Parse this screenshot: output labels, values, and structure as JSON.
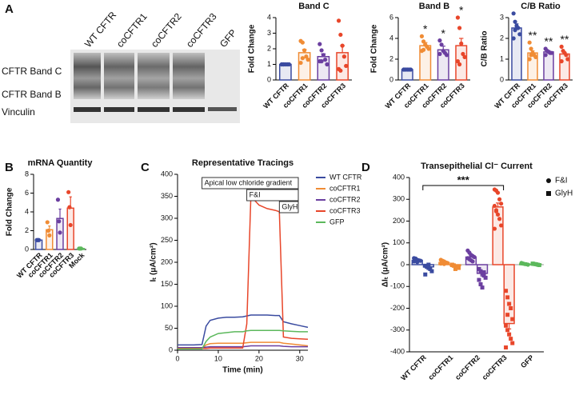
{
  "blot": {
    "panel": "A",
    "lanes": [
      "WT CFTR",
      "coCFTR1",
      "coCFTR2",
      "coCFTR3",
      "GFP"
    ],
    "bands": [
      "CFTR Band C",
      "CFTR Band B",
      "Vinculin"
    ]
  },
  "chart_data": [
    {
      "type": "bar",
      "title": "Band C",
      "ylabel": "Fold Change",
      "categories": [
        "WT CFTR",
        "coCFTR1",
        "coCFTR2",
        "coCFTR3"
      ],
      "colors": [
        "#3a4ba0",
        "#f08c35",
        "#6b3fa0",
        "#e8462a"
      ],
      "values": [
        1,
        1.75,
        1.5,
        1.75
      ],
      "errors": [
        0.02,
        0.2,
        0.18,
        0.45
      ],
      "points": [
        [
          1,
          1,
          1,
          1,
          1,
          1,
          1
        ],
        [
          2.5,
          2.4,
          1.9,
          1.5,
          1.3,
          1.1,
          1.4
        ],
        [
          2.3,
          1.9,
          1.6,
          1.3,
          1.0,
          1.2,
          1.2
        ],
        [
          3.8,
          2.9,
          2.2,
          1.5,
          0.9,
          0.7,
          0.6
        ]
      ],
      "ylim": [
        0,
        4
      ],
      "yticks": [
        0,
        1,
        2,
        3,
        4
      ]
    },
    {
      "type": "bar",
      "title": "Band B",
      "ylabel": "Fold Change",
      "categories": [
        "WT CFTR",
        "coCFTR1",
        "coCFTR2",
        "coCFTR3"
      ],
      "colors": [
        "#3a4ba0",
        "#f08c35",
        "#6b3fa0",
        "#e8462a"
      ],
      "values": [
        1,
        3.3,
        2.9,
        3.3
      ],
      "errors": [
        0.03,
        0.3,
        0.35,
        0.7
      ],
      "points": [
        [
          1,
          1,
          1,
          1,
          1,
          1
        ],
        [
          4.2,
          3.7,
          3.4,
          3.2,
          3.0,
          2.8,
          2.9
        ],
        [
          3.8,
          3.4,
          2.8,
          2.6,
          2.4,
          2.5
        ],
        [
          6.0,
          5.0,
          3.5,
          2.5,
          2.2,
          1.8,
          1.5
        ]
      ],
      "significance": [
        null,
        "*",
        "*",
        "*"
      ],
      "ylim": [
        0,
        6
      ],
      "yticks": [
        0,
        2,
        4,
        6
      ]
    },
    {
      "type": "bar",
      "title": "C/B Ratio",
      "ylabel": "C/B Ratio",
      "categories": [
        "WT CFTR",
        "coCFTR1",
        "coCFTR2",
        "coCFTR3"
      ],
      "colors": [
        "#3a4ba0",
        "#f08c35",
        "#6b3fa0",
        "#e8462a"
      ],
      "values": [
        2.5,
        1.3,
        1.35,
        1.25
      ],
      "errors": [
        0.2,
        0.1,
        0.06,
        0.08
      ],
      "points": [
        [
          3.2,
          2.8,
          2.6,
          2.5,
          2.2,
          2.0,
          2.4
        ],
        [
          1.8,
          1.5,
          1.3,
          1.2,
          1.1,
          1.0,
          1.2
        ],
        [
          1.5,
          1.4,
          1.35,
          1.3,
          1.3,
          1.2,
          1.4
        ],
        [
          1.6,
          1.4,
          1.3,
          1.2,
          1.0,
          0.9
        ]
      ],
      "significance": [
        null,
        "**",
        "**",
        "**"
      ],
      "ylim": [
        0,
        3
      ],
      "yticks": [
        0,
        1,
        2,
        3
      ]
    },
    {
      "type": "bar",
      "panel": "B",
      "title": "mRNA Quantity",
      "ylabel": "Fold Change",
      "categories": [
        "WT CFTR",
        "coCFTR1",
        "coCFTR2",
        "coCFTR3",
        "Mock"
      ],
      "colors": [
        "#3a4ba0",
        "#f08c35",
        "#6b3fa0",
        "#e8462a",
        "#5cb85c"
      ],
      "values": [
        1,
        2.1,
        3.3,
        4.4,
        0.1
      ],
      "errors": [
        0.05,
        0.4,
        1.0,
        1.2,
        0.02
      ],
      "points": [
        [
          1,
          1,
          1
        ],
        [
          2.9,
          2.0,
          1.5
        ],
        [
          5.3,
          3.0,
          1.8
        ],
        [
          6.1,
          4.5,
          2.6
        ],
        [
          0.1,
          0.1,
          0.1
        ]
      ],
      "ylim": [
        0,
        8
      ],
      "yticks": [
        0,
        2,
        4,
        6,
        8
      ]
    },
    {
      "type": "line",
      "panel": "C",
      "title": "Representative Tracings",
      "xlabel": "Time (min)",
      "ylabel": "Iₜ (μA/cm²)",
      "x": [
        0,
        2,
        4,
        6,
        7,
        8,
        10,
        12,
        14,
        16,
        17,
        18,
        19,
        20,
        22,
        24,
        25,
        26,
        28,
        30,
        32
      ],
      "series": [
        {
          "name": "WT CFTR",
          "color": "#3a4ba0",
          "values": [
            12,
            12,
            12,
            13,
            55,
            68,
            73,
            75,
            75,
            76,
            78,
            80,
            80,
            80,
            80,
            79,
            79,
            65,
            60,
            56,
            52
          ]
        },
        {
          "name": "coCFTR1",
          "color": "#f08c35",
          "values": [
            5,
            5,
            5,
            5,
            12,
            15,
            16,
            16,
            16,
            16,
            17,
            18,
            18,
            18,
            18,
            18,
            18,
            16,
            14,
            12,
            10
          ]
        },
        {
          "name": "coCFTR2",
          "color": "#6b3fa0",
          "values": [
            6,
            6,
            6,
            6,
            7,
            8,
            8,
            8,
            8,
            8,
            9,
            10,
            10,
            10,
            10,
            10,
            10,
            9,
            8,
            8,
            8
          ]
        },
        {
          "name": "coCFTR3",
          "color": "#e8462a",
          "values": [
            4,
            4,
            4,
            4,
            4,
            5,
            5,
            5,
            5,
            5,
            60,
            350,
            340,
            330,
            322,
            318,
            315,
            30,
            27,
            26,
            25
          ]
        },
        {
          "name": "GFP",
          "color": "#5cb85c",
          "values": [
            3,
            3,
            3,
            3,
            20,
            30,
            38,
            40,
            42,
            42,
            44,
            45,
            45,
            45,
            45,
            45,
            45,
            44,
            43,
            42,
            42
          ]
        }
      ],
      "annotations": [
        {
          "text": "Apical low chloride gradient",
          "start": 6
        },
        {
          "text": "F&I",
          "start": 17
        },
        {
          "text": "GlyH",
          "start": 25
        }
      ],
      "xlim": [
        0,
        32
      ],
      "xticks": [
        0,
        10,
        20,
        30
      ],
      "ylim": [
        0,
        400
      ],
      "yticks": [
        0,
        50,
        100,
        150,
        200,
        250,
        300,
        350,
        400
      ]
    },
    {
      "type": "bar",
      "panel": "D",
      "title": "Transepithelial Cl⁻ Current",
      "ylabel": "ΔIₜ (μA/cm²)",
      "categories": [
        "WT CFTR",
        "coCFTR1",
        "coCFTR2",
        "coCFTR3",
        "GFP"
      ],
      "colors": [
        "#3a4ba0",
        "#f08c35",
        "#6b3fa0",
        "#e8462a",
        "#5cb85c"
      ],
      "series": [
        {
          "name": "F&I",
          "marker": "circle",
          "values": [
            20,
            10,
            35,
            265,
            3
          ],
          "errors": [
            5,
            3,
            6,
            18,
            1
          ],
          "points": [
            [
              30,
              25,
              22,
              20,
              18,
              15,
              28,
              12
            ],
            [
              22,
              18,
              15,
              10,
              8,
              5,
              12,
              3
            ],
            [
              65,
              55,
              45,
              40,
              35,
              30,
              25,
              20,
              15
            ],
            [
              345,
              340,
              330,
              300,
              280,
              270,
              250,
              230,
              210,
              180,
              165,
              245
            ],
            [
              8,
              5,
              3,
              2,
              0,
              6
            ]
          ]
        },
        {
          "name": "GlyH",
          "marker": "square",
          "values": [
            -10,
            -5,
            -40,
            -270,
            2
          ],
          "errors": [
            6,
            3,
            12,
            25,
            1
          ],
          "points": [
            [
              -5,
              -10,
              -15,
              -20,
              -30,
              -45,
              -8,
              0
            ],
            [
              -2,
              -5,
              -8,
              -12,
              -15,
              0,
              -3,
              -20
            ],
            [
              -20,
              -30,
              -40,
              -50,
              -60,
              -70,
              -90,
              -105,
              -35
            ],
            [
              -120,
              -150,
              -180,
              -200,
              -250,
              -280,
              -300,
              -320,
              -340,
              -360,
              -380,
              -230
            ],
            [
              5,
              3,
              2,
              0,
              -2,
              4
            ]
          ]
        }
      ],
      "bracket": {
        "label": "***",
        "from": 0,
        "to": 3
      },
      "ylim": [
        -400,
        400
      ],
      "yticks": [
        -400,
        -300,
        -200,
        -100,
        0,
        100,
        200,
        300,
        400
      ]
    }
  ]
}
